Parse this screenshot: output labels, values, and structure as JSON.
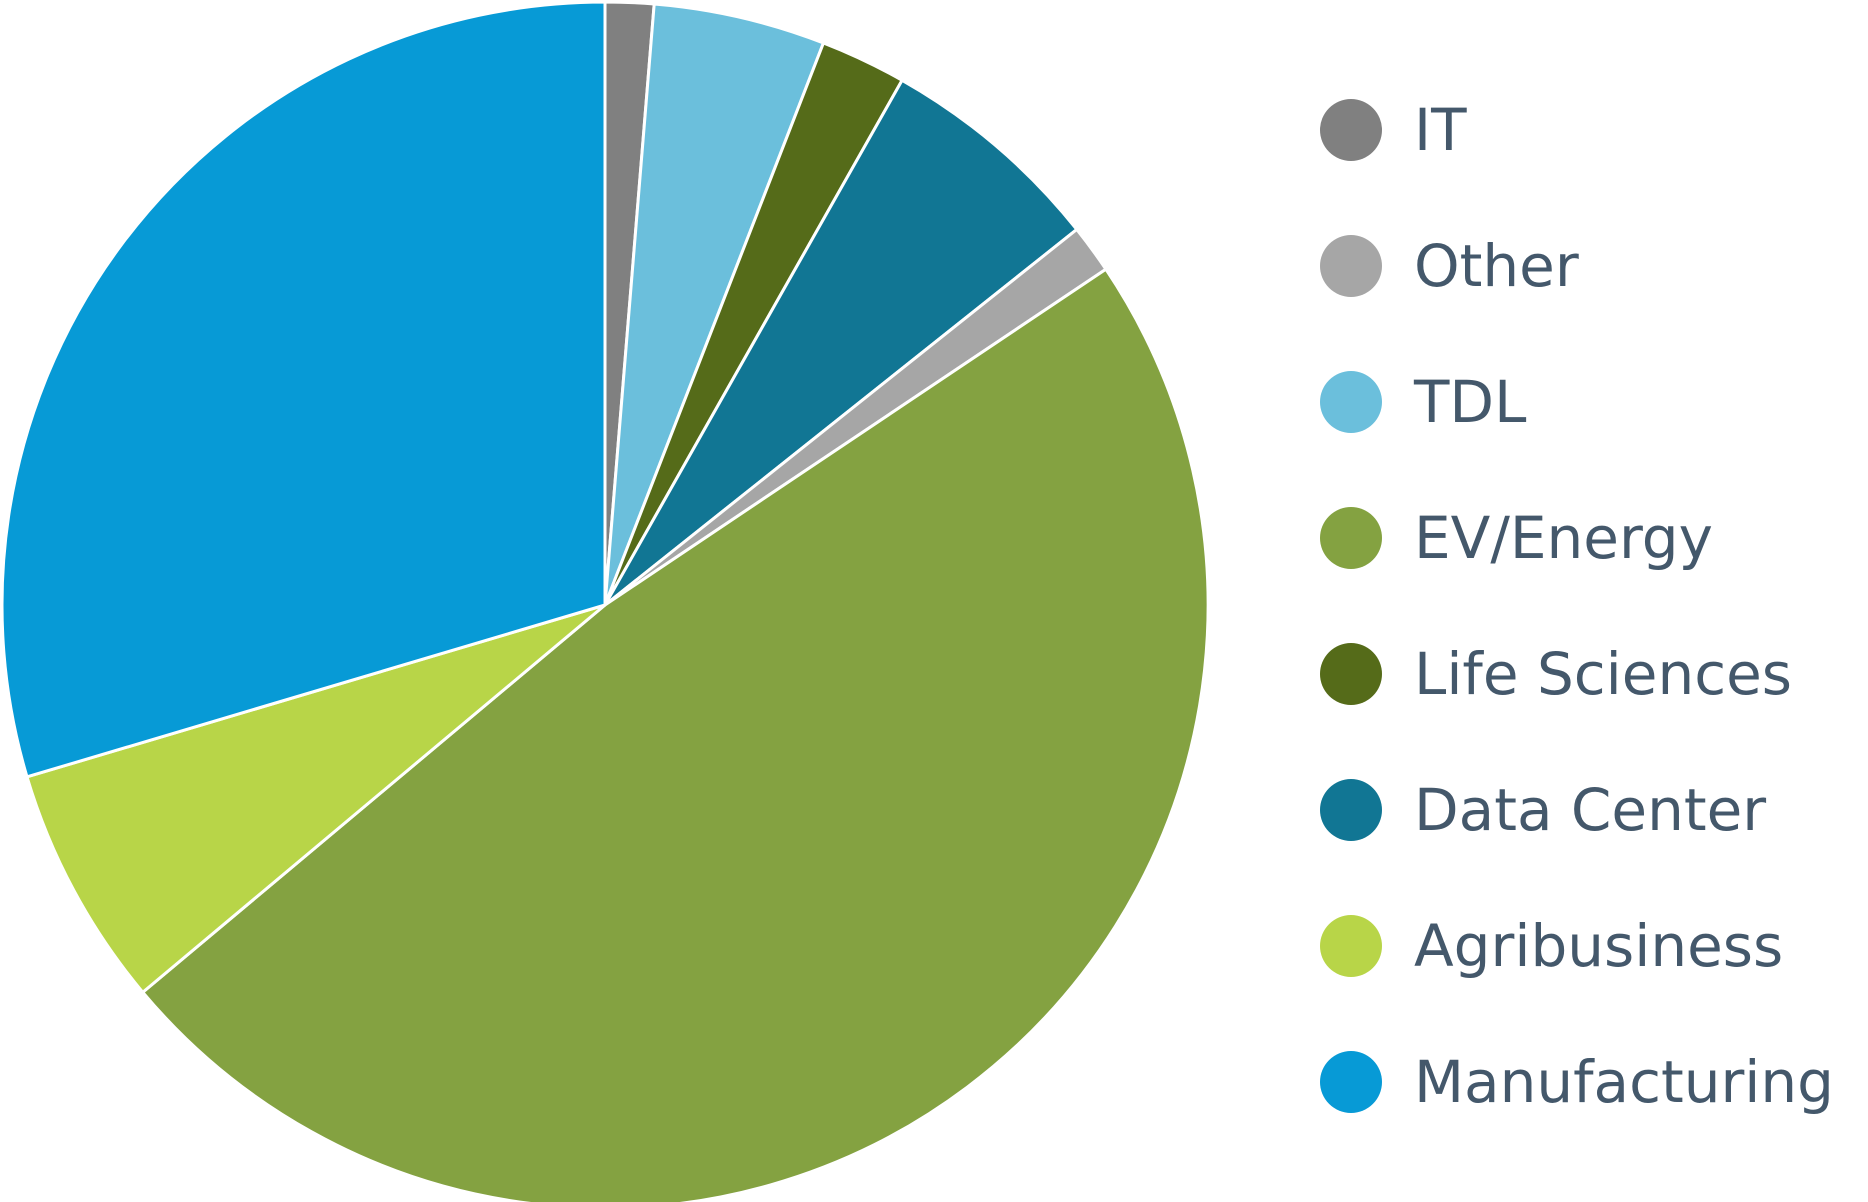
{
  "chart_data": {
    "type": "pie",
    "start_angle_deg": 0,
    "direction": "clockwise",
    "slices": [
      {
        "label": "IT",
        "value": 1.3,
        "color": "#808080"
      },
      {
        "label": "TDL",
        "value": 4.6,
        "color": "#6bbfdc"
      },
      {
        "label": "Life Sciences",
        "value": 2.3,
        "color": "#556b19"
      },
      {
        "label": "Data Center",
        "value": 6.1,
        "color": "#117694"
      },
      {
        "label": "Other",
        "value": 1.3,
        "color": "#a6a6a6"
      },
      {
        "label": "EV/Energy",
        "value": 48.3,
        "color": "#84a241"
      },
      {
        "label": "Agribusiness",
        "value": 6.5,
        "color": "#b8d548"
      },
      {
        "label": "Manufacturing",
        "value": 29.6,
        "color": "#079ad6"
      }
    ],
    "legend": {
      "placement": "right",
      "items": [
        {
          "label": "IT",
          "color": "#808080"
        },
        {
          "label": "Other",
          "color": "#a6a6a6"
        },
        {
          "label": "TDL",
          "color": "#6bbfdc"
        },
        {
          "label": "EV/Energy",
          "color": "#84a241"
        },
        {
          "label": "Life Sciences",
          "color": "#556b19"
        },
        {
          "label": "Data Center",
          "color": "#117694"
        },
        {
          "label": "Agribusiness",
          "color": "#b8d548"
        },
        {
          "label": "Manufacturing",
          "color": "#079ad6"
        }
      ]
    }
  }
}
